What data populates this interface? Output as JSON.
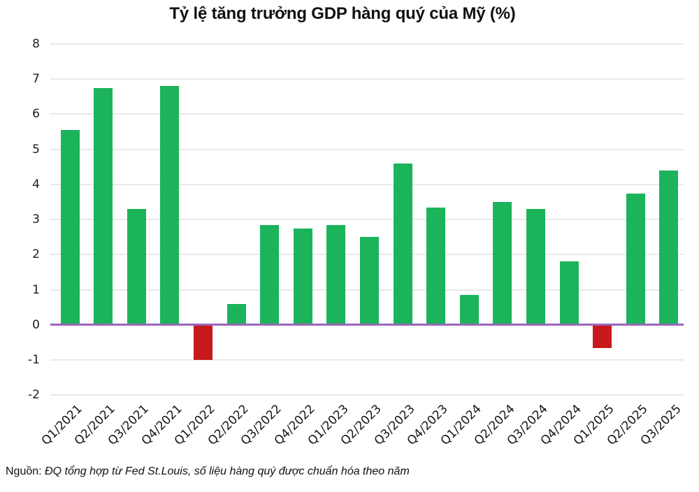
{
  "chart_data": {
    "type": "bar",
    "title": "Tỷ lệ tăng trưởng GDP hàng quý của Mỹ (%)",
    "xlabel": "",
    "ylabel": "",
    "categories": [
      "Q1/2021",
      "Q2/2021",
      "Q3/2021",
      "Q4/2021",
      "Q1/2022",
      "Q2/2022",
      "Q3/2022",
      "Q4/2022",
      "Q1/2023",
      "Q2/2023",
      "Q3/2023",
      "Q4/2023",
      "Q1/2024",
      "Q2/2024",
      "Q3/2024",
      "Q4/2024",
      "Q1/2025",
      "Q2/2025",
      "Q3/2025"
    ],
    "values": [
      5.55,
      6.75,
      3.3,
      6.8,
      -1.0,
      0.6,
      2.85,
      2.75,
      2.85,
      2.5,
      4.6,
      3.35,
      0.85,
      3.5,
      3.3,
      1.8,
      -0.65,
      3.75,
      4.4
    ],
    "ylim": [
      -2,
      8
    ],
    "yticks": [
      8,
      7,
      6,
      5,
      4,
      3,
      2,
      1,
      0,
      -1,
      -2
    ],
    "grid": true,
    "legend": "none",
    "colors": {
      "positive": "#1cb45a",
      "negative": "#c8191c",
      "zero_line": "#9a66bd",
      "gridline": "#e9e9e9",
      "text": "#1f1f1f",
      "title_text": "#111111"
    }
  },
  "source": {
    "prefix": "Nguồn:",
    "text": "ĐQ tổng hợp từ Fed St.Louis, số liệu hàng quý được chuẩn hóa theo năm"
  }
}
